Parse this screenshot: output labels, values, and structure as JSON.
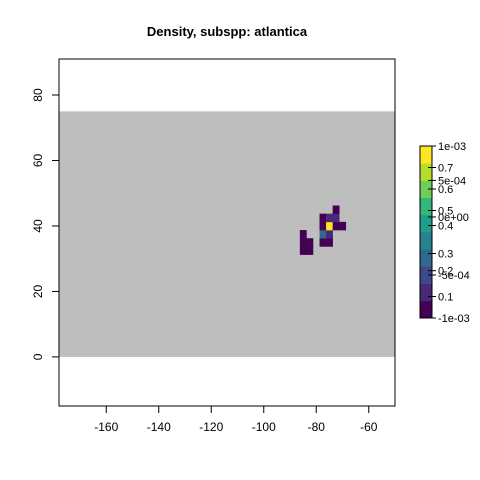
{
  "colors": {
    "land_background": "#bebebe",
    "plot_border": "#000000",
    "viridis": [
      "#440154",
      "#482878",
      "#3e4989",
      "#31688e",
      "#26828e",
      "#1f9e89",
      "#35b779",
      "#6ece58",
      "#b5de2b",
      "#fde725"
    ]
  },
  "chart_data": {
    "type": "heatmap",
    "title": "Density, subspp: atlantica",
    "xlabel": "",
    "ylabel": "",
    "xlim": [
      -178,
      -50
    ],
    "ylim": [
      -15,
      91
    ],
    "x_ticks": [
      -160,
      -140,
      -120,
      -100,
      -80,
      -60
    ],
    "y_ticks": [
      0,
      20,
      40,
      60,
      80
    ],
    "background_extent": {
      "x": [
        -178,
        -50
      ],
      "y": [
        0,
        75
      ]
    },
    "grid": false,
    "legend": "right",
    "cell_size_deg": 2.5,
    "cells": [
      {
        "x": -85,
        "y": 32.5,
        "v": 0.05
      },
      {
        "x": -82.5,
        "y": 32.5,
        "v": 0.05
      },
      {
        "x": -85,
        "y": 35,
        "v": 0.05
      },
      {
        "x": -82.5,
        "y": 35,
        "v": 0.05
      },
      {
        "x": -85,
        "y": 37.5,
        "v": 0.04
      },
      {
        "x": -77.5,
        "y": 35,
        "v": 0.06
      },
      {
        "x": -75,
        "y": 35,
        "v": 0.06
      },
      {
        "x": -77.5,
        "y": 37.5,
        "v": 0.25
      },
      {
        "x": -75,
        "y": 37.5,
        "v": 0.1
      },
      {
        "x": -77.5,
        "y": 40,
        "v": 0.07
      },
      {
        "x": -75,
        "y": 40,
        "v": 0.78
      },
      {
        "x": -72.5,
        "y": 40,
        "v": 0.07
      },
      {
        "x": -70,
        "y": 40,
        "v": 0.06
      },
      {
        "x": -77.5,
        "y": 42.5,
        "v": 0.05
      },
      {
        "x": -75,
        "y": 42.5,
        "v": 0.15
      },
      {
        "x": -72.5,
        "y": 42.5,
        "v": 0.12
      },
      {
        "x": -72.5,
        "y": 45,
        "v": 0.05
      }
    ],
    "colorbar": {
      "range": [
        0,
        0.8
      ],
      "labels": [
        {
          "text": "0.1",
          "value": 0.1
        },
        {
          "text": "0.2",
          "value": 0.22
        },
        {
          "text": "0.3",
          "value": 0.3
        },
        {
          "text": "0.4",
          "value": 0.43
        },
        {
          "text": "0.5",
          "value": 0.5
        },
        {
          "text": "0.6",
          "value": 0.6
        },
        {
          "text": "0.7",
          "value": 0.7
        }
      ],
      "overlay_labels": [
        {
          "text": "1e-03",
          "value": 0.8
        },
        {
          "text": "5e-04",
          "value": 0.64
        },
        {
          "text": "0e+00",
          "value": 0.47
        },
        {
          "text": "-5e-04",
          "value": 0.2
        },
        {
          "text": "-1e-03",
          "value": 0.0
        }
      ]
    }
  }
}
